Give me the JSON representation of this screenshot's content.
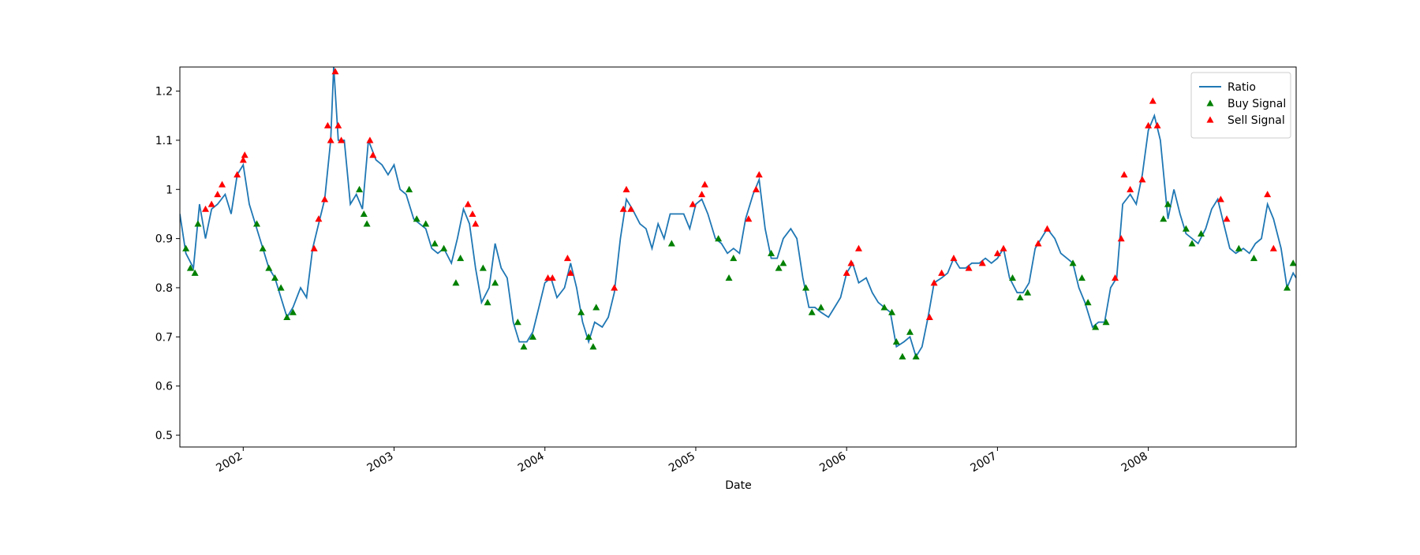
{
  "chart_data": {
    "type": "line",
    "xlabel": "Date",
    "xlim": [
      2001.58,
      2008.98
    ],
    "xticks": [
      2002,
      2003,
      2004,
      2005,
      2006,
      2007,
      2008
    ],
    "ylim": [
      0.476,
      1.249
    ],
    "yticks": [
      0.5,
      0.6,
      0.7,
      0.8,
      0.9,
      1.0,
      1.1,
      1.2
    ],
    "grid": false,
    "legend": "upper right",
    "series": [
      {
        "name": "Ratio",
        "kind": "line",
        "color": "#1f77b4",
        "x": [
          2001.58,
          2001.62,
          2001.67,
          2001.71,
          2001.75,
          2001.79,
          2001.83,
          2001.88,
          2001.92,
          2001.96,
          2002.0,
          2002.04,
          2002.08,
          2002.13,
          2002.17,
          2002.21,
          2002.25,
          2002.29,
          2002.33,
          2002.38,
          2002.42,
          2002.46,
          2002.5,
          2002.54,
          2002.58,
          2002.6,
          2002.63,
          2002.67,
          2002.71,
          2002.75,
          2002.79,
          2002.83,
          2002.88,
          2002.92,
          2002.96,
          2003.0,
          2003.04,
          2003.08,
          2003.13,
          2003.17,
          2003.21,
          2003.25,
          2003.29,
          2003.33,
          2003.38,
          2003.42,
          2003.46,
          2003.5,
          2003.54,
          2003.58,
          2003.63,
          2003.67,
          2003.71,
          2003.75,
          2003.79,
          2003.83,
          2003.88,
          2003.92,
          2003.96,
          2004.0,
          2004.04,
          2004.08,
          2004.13,
          2004.17,
          2004.21,
          2004.25,
          2004.29,
          2004.33,
          2004.38,
          2004.42,
          2004.46,
          2004.5,
          2004.54,
          2004.58,
          2004.63,
          2004.67,
          2004.71,
          2004.75,
          2004.79,
          2004.83,
          2004.88,
          2004.92,
          2004.96,
          2005.0,
          2005.04,
          2005.08,
          2005.13,
          2005.17,
          2005.21,
          2005.25,
          2005.29,
          2005.33,
          2005.38,
          2005.42,
          2005.46,
          2005.5,
          2005.54,
          2005.58,
          2005.63,
          2005.67,
          2005.71,
          2005.75,
          2005.79,
          2005.83,
          2005.88,
          2005.92,
          2005.96,
          2006.0,
          2006.04,
          2006.08,
          2006.13,
          2006.17,
          2006.21,
          2006.25,
          2006.29,
          2006.33,
          2006.38,
          2006.42,
          2006.46,
          2006.5,
          2006.54,
          2006.58,
          2006.63,
          2006.67,
          2006.71,
          2006.75,
          2006.79,
          2006.83,
          2006.88,
          2006.92,
          2006.96,
          2007.0,
          2007.04,
          2007.08,
          2007.13,
          2007.17,
          2007.21,
          2007.25,
          2007.29,
          2007.33,
          2007.38,
          2007.42,
          2007.46,
          2007.5,
          2007.54,
          2007.58,
          2007.63,
          2007.67,
          2007.71,
          2007.75,
          2007.79,
          2007.83,
          2007.88,
          2007.92,
          2007.96,
          2008.0,
          2008.04,
          2008.08,
          2008.13,
          2008.17,
          2008.21,
          2008.25,
          2008.29,
          2008.33,
          2008.38,
          2008.42,
          2008.46,
          2008.5,
          2008.54,
          2008.58,
          2008.63,
          2008.67,
          2008.71,
          2008.75,
          2008.79,
          2008.83,
          2008.88,
          2008.92,
          2008.96,
          2008.98
        ],
        "values": [
          0.95,
          0.87,
          0.84,
          0.97,
          0.9,
          0.96,
          0.97,
          0.99,
          0.95,
          1.03,
          1.05,
          0.97,
          0.93,
          0.88,
          0.84,
          0.82,
          0.78,
          0.74,
          0.76,
          0.8,
          0.78,
          0.88,
          0.93,
          0.98,
          1.1,
          1.25,
          1.1,
          1.1,
          0.97,
          0.99,
          0.96,
          1.1,
          1.06,
          1.05,
          1.03,
          1.05,
          1.0,
          0.99,
          0.94,
          0.93,
          0.92,
          0.88,
          0.87,
          0.88,
          0.85,
          0.9,
          0.96,
          0.93,
          0.84,
          0.77,
          0.8,
          0.89,
          0.84,
          0.82,
          0.73,
          0.69,
          0.69,
          0.71,
          0.76,
          0.81,
          0.82,
          0.78,
          0.8,
          0.85,
          0.8,
          0.73,
          0.69,
          0.73,
          0.72,
          0.74,
          0.79,
          0.9,
          0.98,
          0.96,
          0.93,
          0.92,
          0.88,
          0.93,
          0.9,
          0.95,
          0.95,
          0.95,
          0.92,
          0.97,
          0.98,
          0.95,
          0.9,
          0.89,
          0.87,
          0.88,
          0.87,
          0.94,
          0.99,
          1.02,
          0.92,
          0.86,
          0.86,
          0.9,
          0.92,
          0.9,
          0.82,
          0.76,
          0.76,
          0.75,
          0.74,
          0.76,
          0.78,
          0.83,
          0.85,
          0.81,
          0.82,
          0.79,
          0.77,
          0.76,
          0.75,
          0.68,
          0.69,
          0.7,
          0.66,
          0.68,
          0.74,
          0.81,
          0.82,
          0.83,
          0.86,
          0.84,
          0.84,
          0.85,
          0.85,
          0.86,
          0.85,
          0.86,
          0.88,
          0.82,
          0.79,
          0.79,
          0.81,
          0.88,
          0.9,
          0.92,
          0.9,
          0.87,
          0.86,
          0.85,
          0.8,
          0.77,
          0.72,
          0.73,
          0.73,
          0.8,
          0.82,
          0.97,
          0.99,
          0.97,
          1.03,
          1.12,
          1.15,
          1.1,
          0.94,
          1.0,
          0.95,
          0.91,
          0.9,
          0.89,
          0.92,
          0.96,
          0.98,
          0.93,
          0.88,
          0.87,
          0.88,
          0.87,
          0.89,
          0.9,
          0.97,
          0.94,
          0.88,
          0.8,
          0.83,
          0.82
        ]
      },
      {
        "name": "Buy Signal",
        "kind": "scatter",
        "color": "#008000",
        "x": [
          2001.62,
          2001.65,
          2001.68,
          2001.7,
          2002.09,
          2002.13,
          2002.17,
          2002.21,
          2002.25,
          2002.29,
          2002.33,
          2002.77,
          2002.8,
          2002.82,
          2003.1,
          2003.15,
          2003.21,
          2003.27,
          2003.33,
          2003.41,
          2003.44,
          2003.59,
          2003.62,
          2003.67,
          2003.82,
          2003.86,
          2003.92,
          2004.24,
          2004.29,
          2004.32,
          2004.34,
          2004.84,
          2005.15,
          2005.22,
          2005.25,
          2005.5,
          2005.55,
          2005.58,
          2005.73,
          2005.77,
          2005.83,
          2006.25,
          2006.3,
          2006.33,
          2006.37,
          2006.42,
          2006.46,
          2007.1,
          2007.15,
          2007.2,
          2007.5,
          2007.56,
          2007.6,
          2007.65,
          2007.72,
          2008.1,
          2008.13,
          2008.25,
          2008.29,
          2008.35,
          2008.6,
          2008.7,
          2008.92,
          2008.96
        ],
        "values": [
          0.88,
          0.84,
          0.83,
          0.93,
          0.93,
          0.88,
          0.84,
          0.82,
          0.8,
          0.74,
          0.75,
          1.0,
          0.95,
          0.93,
          1.0,
          0.94,
          0.93,
          0.89,
          0.88,
          0.81,
          0.86,
          0.84,
          0.77,
          0.81,
          0.73,
          0.68,
          0.7,
          0.75,
          0.7,
          0.68,
          0.76,
          0.89,
          0.9,
          0.82,
          0.86,
          0.87,
          0.84,
          0.85,
          0.8,
          0.75,
          0.76,
          0.76,
          0.75,
          0.69,
          0.66,
          0.71,
          0.66,
          0.82,
          0.78,
          0.79,
          0.85,
          0.82,
          0.77,
          0.72,
          0.73,
          0.94,
          0.97,
          0.92,
          0.89,
          0.91,
          0.88,
          0.86,
          0.8,
          0.85
        ]
      },
      {
        "name": "Sell Signal",
        "kind": "scatter",
        "color": "#ff0000",
        "x": [
          2001.75,
          2001.79,
          2001.83,
          2001.86,
          2001.96,
          2002.0,
          2002.01,
          2002.47,
          2002.5,
          2002.54,
          2002.56,
          2002.58,
          2002.61,
          2002.63,
          2002.65,
          2002.84,
          2002.86,
          2003.49,
          2003.52,
          2003.54,
          2004.02,
          2004.05,
          2004.15,
          2004.17,
          2004.46,
          2004.52,
          2004.54,
          2004.57,
          2004.98,
          2005.04,
          2005.06,
          2005.35,
          2005.4,
          2005.42,
          2006.0,
          2006.03,
          2006.08,
          2006.55,
          2006.58,
          2006.63,
          2006.71,
          2006.81,
          2006.9,
          2007.0,
          2007.04,
          2007.27,
          2007.33,
          2007.78,
          2007.82,
          2007.84,
          2007.88,
          2007.96,
          2008.0,
          2008.03,
          2008.06,
          2008.48,
          2008.52,
          2008.79,
          2008.83
        ],
        "values": [
          0.96,
          0.97,
          0.99,
          1.01,
          1.03,
          1.06,
          1.07,
          0.88,
          0.94,
          0.98,
          1.13,
          1.1,
          1.24,
          1.13,
          1.1,
          1.1,
          1.07,
          0.97,
          0.95,
          0.93,
          0.82,
          0.82,
          0.86,
          0.83,
          0.8,
          0.96,
          1.0,
          0.96,
          0.97,
          0.99,
          1.01,
          0.94,
          1.0,
          1.03,
          0.83,
          0.85,
          0.88,
          0.74,
          0.81,
          0.83,
          0.86,
          0.84,
          0.85,
          0.87,
          0.88,
          0.89,
          0.92,
          0.82,
          0.9,
          1.03,
          1.0,
          1.02,
          1.13,
          1.18,
          1.13,
          0.98,
          0.94,
          0.99,
          0.88
        ]
      }
    ]
  }
}
